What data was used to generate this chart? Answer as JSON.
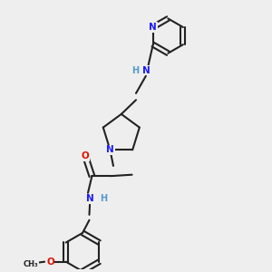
{
  "bg_color": "#eeeeee",
  "bond_color": "#222222",
  "N_color": "#1a1aff",
  "O_color": "#dd1100",
  "H_color": "#5599cc",
  "font_size": 7.5,
  "lw": 1.5,
  "xlim": [
    0,
    10
  ],
  "ylim": [
    0,
    10
  ]
}
